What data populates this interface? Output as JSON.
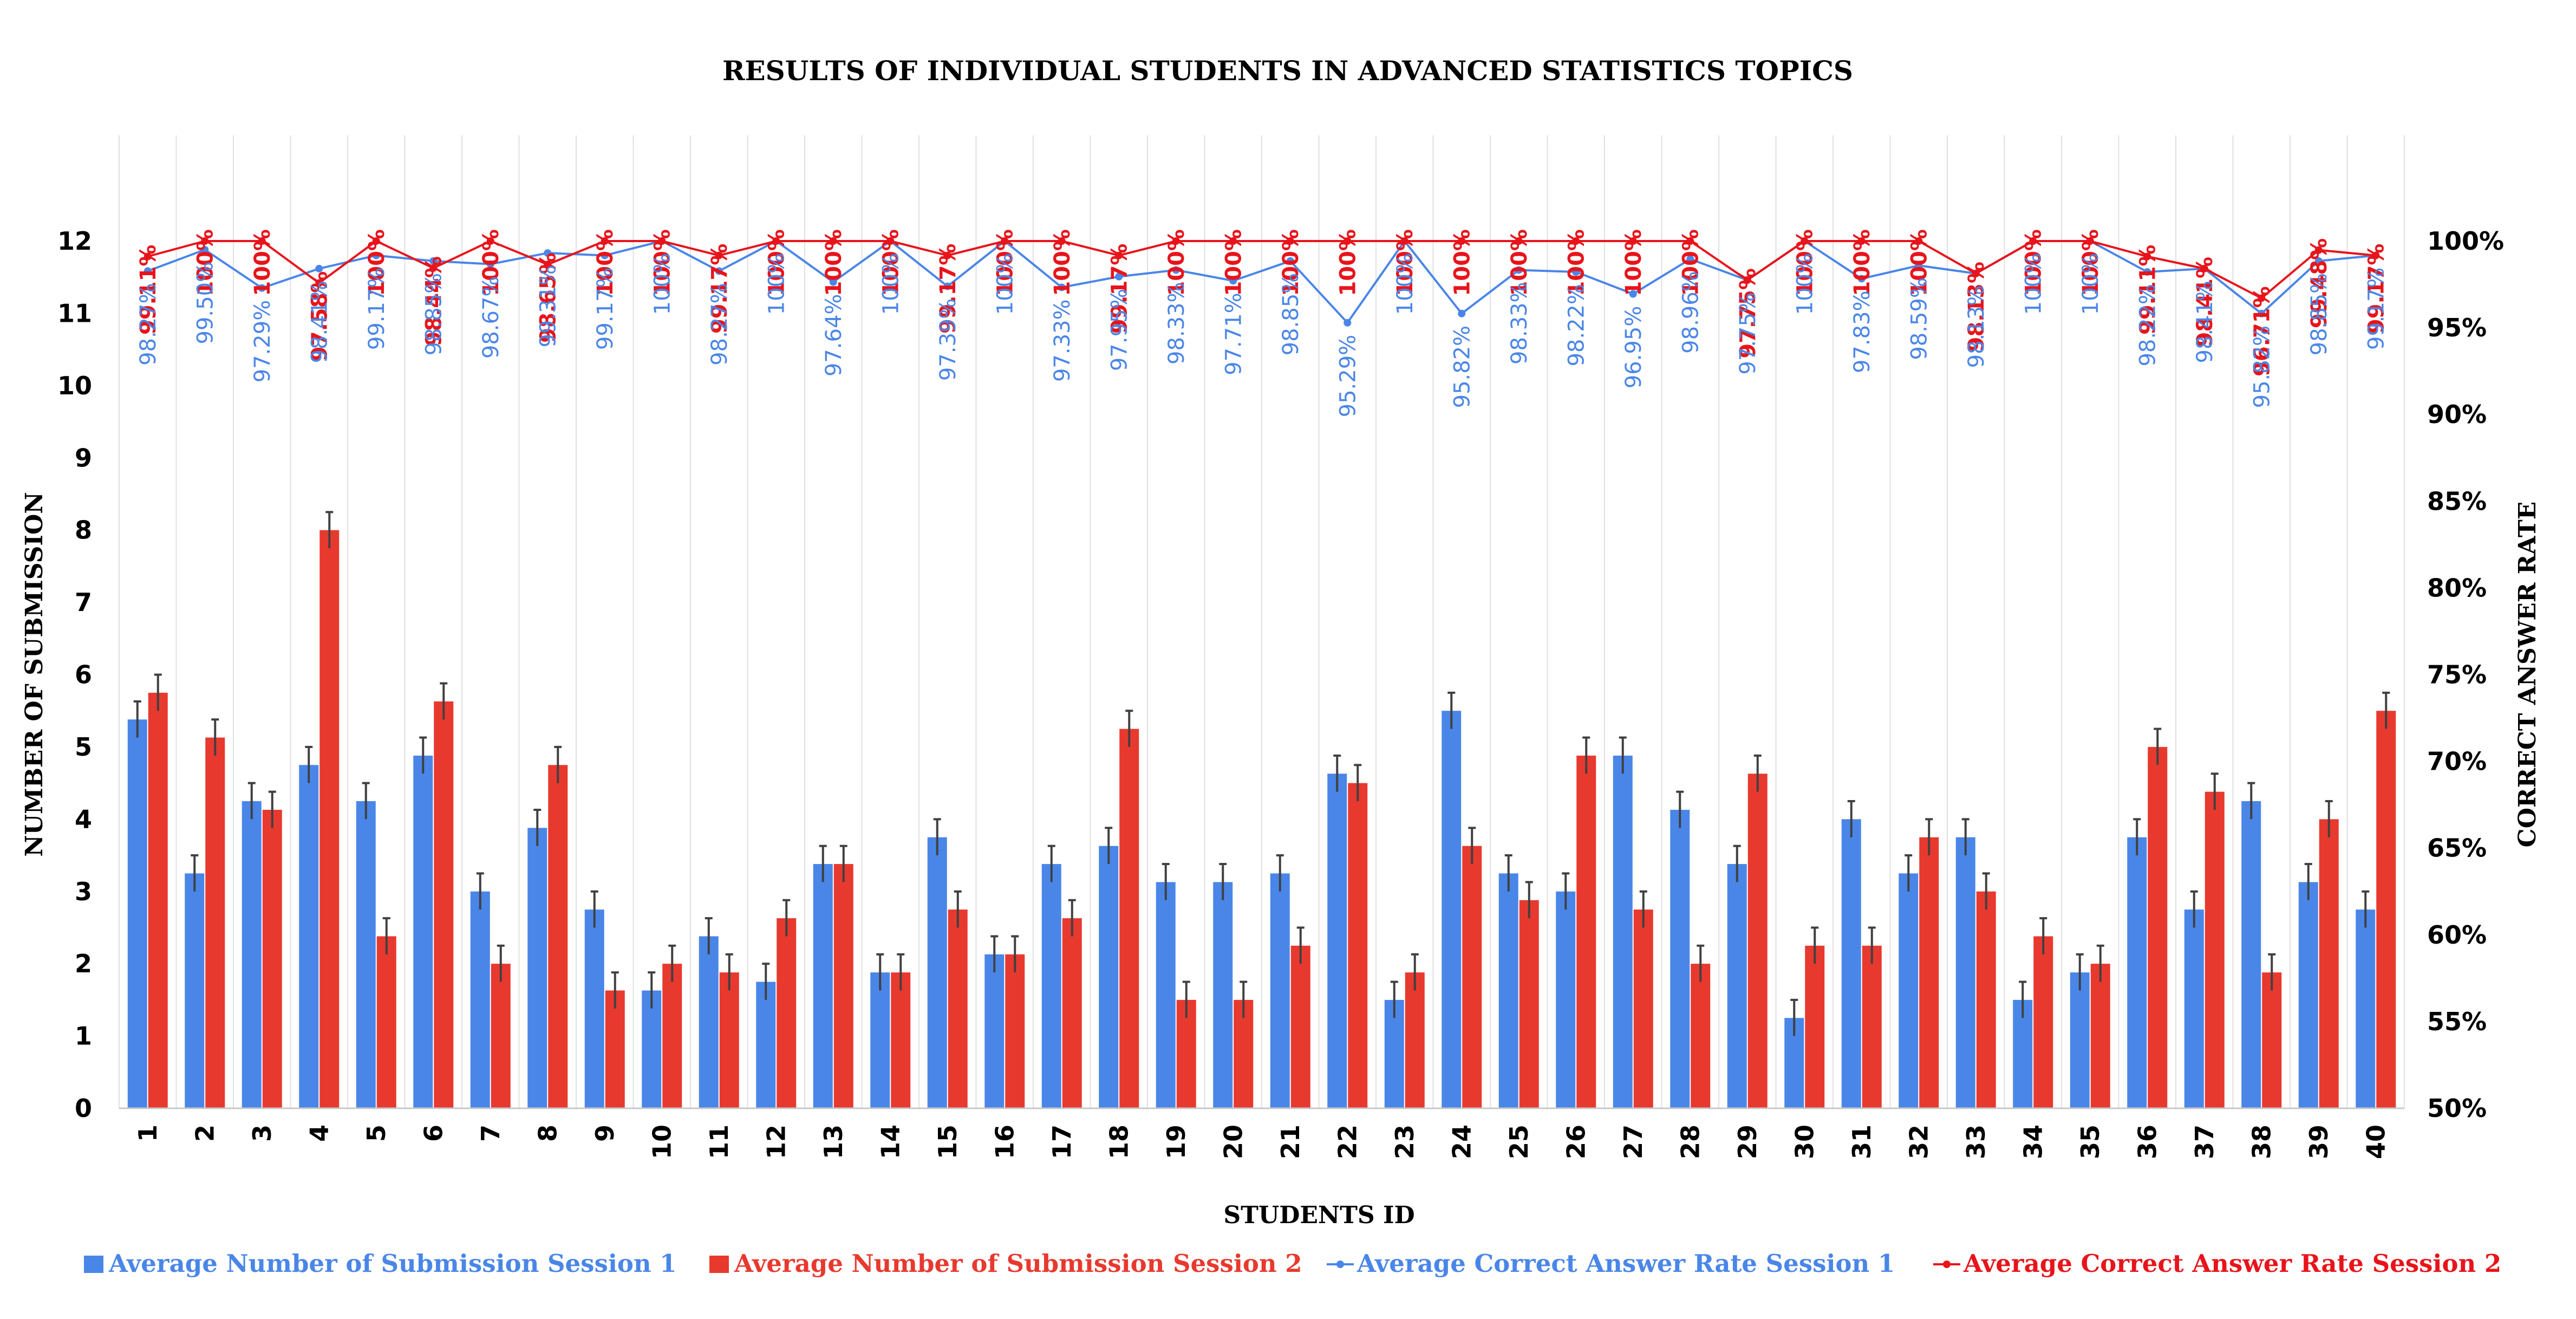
{
  "chart_data": {
    "type": "bar",
    "title": "RESULTS OF INDIVIDUAL STUDENTS IN ADVANCED STATISTICS TOPICS",
    "xlabel": "STUDENTS ID",
    "ylabel": "NUMBER OF SUBMISSION",
    "y2label": "CORRECT ANSWER RATE",
    "ylim": [
      0,
      12
    ],
    "y2lim": [
      50,
      100
    ],
    "categories": [
      "1",
      "2",
      "3",
      "4",
      "5",
      "6",
      "7",
      "8",
      "9",
      "10",
      "11",
      "12",
      "13",
      "14",
      "15",
      "16",
      "17",
      "18",
      "19",
      "20",
      "21",
      "22",
      "23",
      "24",
      "25",
      "26",
      "27",
      "28",
      "29",
      "30",
      "31",
      "32",
      "33",
      "34",
      "35",
      "36",
      "37",
      "38",
      "39",
      "40"
    ],
    "yticks": [
      "0",
      "1",
      "2",
      "3",
      "4",
      "5",
      "6",
      "7",
      "8",
      "9",
      "10",
      "11",
      "12"
    ],
    "y2ticks": [
      "50%",
      "55%",
      "60%",
      "65%",
      "70%",
      "75%",
      "80%",
      "85%",
      "90%",
      "95%",
      "100%"
    ],
    "series": [
      {
        "name": "Average Number of Submission Session 1",
        "kind": "bar",
        "color": "#4a86e8",
        "values": [
          5.38,
          3.25,
          4.25,
          4.75,
          4.25,
          4.88,
          3.0,
          3.88,
          2.75,
          1.63,
          2.38,
          1.75,
          3.38,
          1.88,
          3.75,
          2.13,
          3.38,
          3.63,
          3.13,
          3.13,
          3.25,
          4.63,
          1.5,
          5.5,
          3.25,
          3.0,
          4.88,
          4.13,
          3.38,
          1.25,
          4.0,
          3.25,
          3.75,
          1.5,
          1.88,
          3.75,
          2.75,
          4.25,
          3.13,
          2.75
        ]
      },
      {
        "name": "Average Number of Submission Session 2",
        "kind": "bar",
        "color": "#e8392f",
        "values": [
          5.75,
          5.13,
          4.13,
          8.0,
          2.38,
          5.63,
          2.0,
          4.75,
          1.63,
          2.0,
          1.88,
          2.63,
          3.38,
          1.88,
          2.75,
          2.13,
          2.63,
          5.25,
          1.5,
          1.5,
          2.25,
          4.5,
          1.88,
          3.63,
          2.88,
          4.88,
          2.75,
          2.0,
          4.63,
          2.25,
          2.25,
          3.75,
          3.0,
          2.38,
          2.0,
          5.0,
          4.38,
          1.88,
          4.0,
          5.5
        ]
      },
      {
        "name": "Average Correct Answer Rate Session 1",
        "kind": "line",
        "axis": "y2",
        "color": "#4a86e8",
        "values": [
          98.27,
          99.5,
          97.29,
          98.41,
          99.17,
          98.85,
          98.67,
          99.31,
          99.17,
          100,
          98.27,
          100,
          97.64,
          100,
          97.39,
          100,
          97.33,
          97.95,
          98.33,
          97.71,
          98.85,
          95.29,
          100,
          95.82,
          98.33,
          98.22,
          96.95,
          98.96,
          97.75,
          100,
          97.83,
          98.59,
          98.13,
          100,
          100,
          98.22,
          98.41,
          95.82,
          98.85,
          99.17
        ],
        "labels": [
          "98.27%",
          "99.50%",
          "97.29%",
          "98.41%",
          "99.17%",
          "98.85%",
          "98.67%",
          "99.31%",
          "99.17%",
          "100%",
          "98.27%",
          "100%",
          "97.64%",
          "100%",
          "97.39%",
          "100%",
          "97.33%",
          "97.95%",
          "98.33%",
          "97.71%",
          "98.85%",
          "95.29%",
          "100%",
          "95.82%",
          "98.33%",
          "98.22%",
          "96.95%",
          "98.96%",
          "97.75%",
          "100%",
          "97.83%",
          "98.59%",
          "98.13%",
          "100%",
          "100%",
          "98.22%",
          "98.41%",
          "95.82%",
          "98.85%",
          "99.17%"
        ]
      },
      {
        "name": "Average Correct Answer Rate Session 2",
        "kind": "line",
        "axis": "y2",
        "color": "#e8141b",
        "values": [
          99.11,
          100,
          100,
          97.58,
          100,
          98.44,
          100,
          98.65,
          100,
          100,
          99.17,
          100,
          100,
          100,
          99.17,
          100,
          100,
          99.17,
          100,
          100,
          100,
          100,
          100,
          100,
          100,
          100,
          100,
          100,
          97.75,
          100,
          100,
          100,
          98.13,
          100,
          100,
          99.11,
          98.41,
          96.71,
          99.48,
          99.17
        ],
        "labels": [
          "99.11%",
          "100%",
          "100%",
          "97.58%",
          "100%",
          "98.44%",
          "100%",
          "98.65%",
          "100%",
          "100%",
          "99.17%",
          "100%",
          "100%",
          "100%",
          "99.17%",
          "100%",
          "100%",
          "99.17%",
          "100%",
          "100%",
          "100%",
          "100%",
          "100%",
          "100%",
          "100%",
          "100%",
          "100%",
          "100%",
          "97.75%",
          "100%",
          "100%",
          "100%",
          "98.13%",
          "100%",
          "100%",
          "99.11%",
          "98.41%",
          "96.71%",
          "99.48%",
          "99.17%"
        ]
      }
    ],
    "legend": "bottom",
    "grid": "vertical category separators"
  }
}
